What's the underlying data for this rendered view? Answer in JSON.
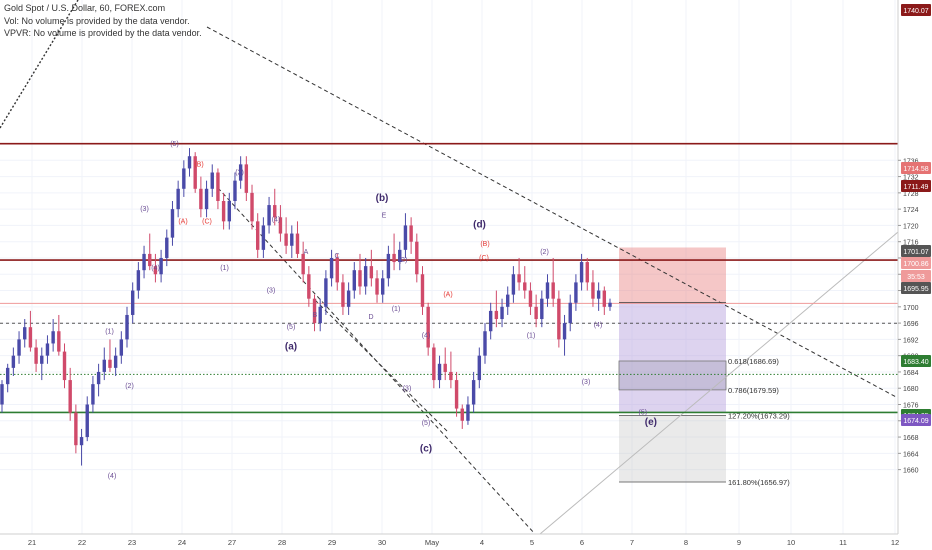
{
  "header": {
    "symbol": "Gold Spot / U.S. Dollar, 60, FOREX.com",
    "vol_note": "Vol: No volume is provided by the data vendor.",
    "vpvr_note": "VPVR: No volume is provided by the data vendor."
  },
  "chart_data": {
    "type": "candlestick",
    "y_ticks": [
      1660,
      1664,
      1668,
      1672,
      1676,
      1680,
      1684,
      1688,
      1692,
      1696,
      1700,
      1704,
      1708,
      1712,
      1716,
      1720,
      1724,
      1728,
      1732,
      1736
    ],
    "x_ticks": [
      "21",
      "22",
      "23",
      "24",
      "27",
      "28",
      "29",
      "30",
      "May",
      "4",
      "5",
      "6",
      "7",
      "8",
      "9",
      "10",
      "11",
      "12"
    ],
    "price_badges": [
      {
        "value": "1740.07",
        "color": "#8b1a1a"
      },
      {
        "value": "1714.58",
        "color": "#e57373"
      },
      {
        "value": "1711.49",
        "color": "#8b1a1a"
      },
      {
        "value": "1701.07",
        "color": "#555555"
      },
      {
        "value": "1700.86",
        "color": "#ef9a9a"
      },
      {
        "value": "35:53",
        "color": "#ef9a9a"
      },
      {
        "value": "1695.95",
        "color": "#555555"
      },
      {
        "value": "1683.40",
        "color": "#2e7d32"
      },
      {
        "value": "1674.05",
        "color": "#2e7d32"
      },
      {
        "value": "1674.09",
        "color": "#7e57c2"
      }
    ],
    "horizontal_levels": [
      {
        "price": 1740.07,
        "color": "#8b1a1a",
        "style": "solid"
      },
      {
        "price": 1711.49,
        "color": "#8b1a1a",
        "style": "solid"
      },
      {
        "price": 1700.86,
        "color": "#ef9a9a",
        "style": "solid"
      },
      {
        "price": 1695.95,
        "color": "#555555",
        "style": "dashed"
      },
      {
        "price": 1683.4,
        "color": "#2e7d32",
        "style": "dotted"
      },
      {
        "price": 1674.05,
        "color": "#2e7d32",
        "style": "solid"
      }
    ],
    "fib_labels": [
      {
        "text": "0.618(1686.69)",
        "price": 1686.69
      },
      {
        "text": "0.786(1679.59)",
        "price": 1679.59
      },
      {
        "text": "127.20%(1673.29)",
        "price": 1673.29
      },
      {
        "text": "161.80%(1656.97)",
        "price": 1656.97
      }
    ],
    "wave_labels": [
      {
        "text": "(5)",
        "time": 2.85,
        "price": 1739.5,
        "color": "#6a4c93",
        "size": 7
      },
      {
        "text": "(B)",
        "time": 3.34,
        "price": 1734.5,
        "color": "#e53935",
        "size": 7
      },
      {
        "text": "(A)",
        "time": 3.02,
        "price": 1720.5,
        "color": "#e53935",
        "size": 7
      },
      {
        "text": "(C)",
        "time": 3.5,
        "price": 1720.5,
        "color": "#e53935",
        "size": 7
      },
      {
        "text": "(3)",
        "time": 2.25,
        "price": 1723.5,
        "color": "#6a4c93",
        "size": 7
      },
      {
        "text": "(4)",
        "time": 2.47,
        "price": 1709,
        "color": "#6a4c93",
        "size": 7
      },
      {
        "text": "(1)",
        "time": 1.55,
        "price": 1693.5,
        "color": "#6a4c93",
        "size": 7
      },
      {
        "text": "(2)",
        "time": 1.95,
        "price": 1680,
        "color": "#6a4c93",
        "size": 7
      },
      {
        "text": "(4)",
        "time": 1.6,
        "price": 1658,
        "color": "#6a4c93",
        "size": 7
      },
      {
        "text": "(2)",
        "time": 4.15,
        "price": 1732.5,
        "color": "#6a4c93",
        "size": 7
      },
      {
        "text": "(4)",
        "time": 4.88,
        "price": 1721,
        "color": "#6a4c93",
        "size": 7
      },
      {
        "text": "(1)",
        "time": 3.85,
        "price": 1709,
        "color": "#6a4c93",
        "size": 7
      },
      {
        "text": "(3)",
        "time": 4.78,
        "price": 1703.5,
        "color": "#6a4c93",
        "size": 7
      },
      {
        "text": "(5)",
        "time": 5.18,
        "price": 1694.5,
        "color": "#6a4c93",
        "size": 7
      },
      {
        "text": "A",
        "time": 5.48,
        "price": 1713,
        "color": "#6a4c93",
        "size": 7
      },
      {
        "text": "B",
        "time": 5.66,
        "price": 1697.5,
        "color": "#6a4c93",
        "size": 7
      },
      {
        "text": "C",
        "time": 6.1,
        "price": 1712,
        "color": "#6a4c93",
        "size": 7
      },
      {
        "text": "D",
        "time": 6.78,
        "price": 1697,
        "color": "#6a4c93",
        "size": 7
      },
      {
        "text": "E",
        "time": 7.04,
        "price": 1722,
        "color": "#6a4c93",
        "size": 7
      },
      {
        "text": "(a)",
        "time": 5.18,
        "price": 1689.5,
        "color": "#3f2a6b",
        "size": 10
      },
      {
        "text": "(b)",
        "time": 7.0,
        "price": 1726,
        "color": "#3f2a6b",
        "size": 10
      },
      {
        "text": "(2)",
        "time": 7.42,
        "price": 1711,
        "color": "#6a4c93",
        "size": 7
      },
      {
        "text": "(1)",
        "time": 7.28,
        "price": 1699,
        "color": "#6a4c93",
        "size": 7
      },
      {
        "text": "(4)",
        "time": 7.88,
        "price": 1692.5,
        "color": "#6a4c93",
        "size": 7
      },
      {
        "text": "(3)",
        "time": 7.5,
        "price": 1679.5,
        "color": "#6a4c93",
        "size": 7
      },
      {
        "text": "(5)",
        "time": 7.88,
        "price": 1671,
        "color": "#6a4c93",
        "size": 7
      },
      {
        "text": "(c)",
        "time": 7.88,
        "price": 1664.5,
        "color": "#3f2a6b",
        "size": 10
      },
      {
        "text": "(d)",
        "time": 8.95,
        "price": 1719.5,
        "color": "#3f2a6b",
        "size": 10
      },
      {
        "text": "(A)",
        "time": 8.32,
        "price": 1702.5,
        "color": "#e53935",
        "size": 7
      },
      {
        "text": "(B)",
        "time": 9.06,
        "price": 1715,
        "color": "#e53935",
        "size": 7
      },
      {
        "text": "(C)",
        "time": 9.04,
        "price": 1711.5,
        "color": "#e53935",
        "size": 7
      },
      {
        "text": "(2)",
        "time": 10.25,
        "price": 1713,
        "color": "#6a4c93",
        "size": 7
      },
      {
        "text": "(1)",
        "time": 9.98,
        "price": 1692.5,
        "color": "#6a4c93",
        "size": 7
      },
      {
        "text": "(4)",
        "time": 11.32,
        "price": 1695,
        "color": "#6a4c93",
        "size": 7
      },
      {
        "text": "(3)",
        "time": 11.08,
        "price": 1681,
        "color": "#6a4c93",
        "size": 7
      },
      {
        "text": "(5)",
        "time": 12.2,
        "price": 1673.5,
        "color": "#6a4c93",
        "size": 7
      },
      {
        "text": "(e)",
        "time": 12.35,
        "price": 1671,
        "color": "#3f2a6b",
        "size": 10
      }
    ],
    "ohlc": [
      [
        1676.0,
        1682.0,
        1674.0,
        1681.0
      ],
      [
        1681.0,
        1686.0,
        1679.0,
        1685.0
      ],
      [
        1685.0,
        1690.0,
        1683.0,
        1688.0
      ],
      [
        1688.0,
        1694.0,
        1686.0,
        1692.0
      ],
      [
        1692.0,
        1697.0,
        1690.0,
        1695.0
      ],
      [
        1695.0,
        1699.0,
        1689.0,
        1690.0
      ],
      [
        1690.0,
        1692.0,
        1684.0,
        1686.0
      ],
      [
        1686.0,
        1690.0,
        1682.0,
        1688.0
      ],
      [
        1688.0,
        1693.0,
        1686.0,
        1691.0
      ],
      [
        1691.0,
        1697.0,
        1689.0,
        1694.0
      ],
      [
        1694.0,
        1698.0,
        1688.0,
        1689.0
      ],
      [
        1689.0,
        1691.0,
        1680.0,
        1682.0
      ],
      [
        1682.0,
        1685.0,
        1672.0,
        1674.0
      ],
      [
        1674.0,
        1676.0,
        1664.0,
        1666.0
      ],
      [
        1666.0,
        1670.0,
        1661.0,
        1668.0
      ],
      [
        1668.0,
        1678.0,
        1667.0,
        1676.0
      ],
      [
        1676.0,
        1683.0,
        1674.0,
        1681.0
      ],
      [
        1681.0,
        1686.0,
        1678.0,
        1684.0
      ],
      [
        1684.0,
        1690.0,
        1682.0,
        1687.0
      ],
      [
        1687.0,
        1692.0,
        1684.0,
        1685.0
      ],
      [
        1685.0,
        1690.0,
        1683.0,
        1688.0
      ],
      [
        1688.0,
        1694.0,
        1686.0,
        1692.0
      ],
      [
        1692.0,
        1700.0,
        1690.0,
        1698.0
      ],
      [
        1698.0,
        1706.0,
        1696.0,
        1704.0
      ],
      [
        1704.0,
        1711.0,
        1702.0,
        1709.0
      ],
      [
        1709.0,
        1715.0,
        1707.0,
        1713.0
      ],
      [
        1713.0,
        1718.0,
        1709.0,
        1710.0
      ],
      [
        1710.0,
        1713.0,
        1706.0,
        1708.0
      ],
      [
        1708.0,
        1714.0,
        1706.0,
        1712.0
      ],
      [
        1712.0,
        1719.0,
        1710.0,
        1717.0
      ],
      [
        1717.0,
        1726.0,
        1715.0,
        1724.0
      ],
      [
        1724.0,
        1731.0,
        1722.0,
        1729.0
      ],
      [
        1729.0,
        1736.0,
        1727.0,
        1734.0
      ],
      [
        1734.0,
        1739.0,
        1732.0,
        1737.0
      ],
      [
        1737.0,
        1738.0,
        1728.0,
        1729.0
      ],
      [
        1729.0,
        1732.0,
        1722.0,
        1724.0
      ],
      [
        1724.0,
        1731.0,
        1722.0,
        1729.0
      ],
      [
        1729.0,
        1735.0,
        1727.0,
        1733.0
      ],
      [
        1733.0,
        1734.0,
        1724.0,
        1726.0
      ],
      [
        1726.0,
        1728.0,
        1719.0,
        1721.0
      ],
      [
        1721.0,
        1728.0,
        1719.0,
        1726.0
      ],
      [
        1726.0,
        1733.0,
        1724.0,
        1731.0
      ],
      [
        1731.0,
        1737.0,
        1729.0,
        1735.0
      ],
      [
        1735.0,
        1737.0,
        1726.0,
        1728.0
      ],
      [
        1728.0,
        1730.0,
        1719.0,
        1721.0
      ],
      [
        1721.0,
        1723.0,
        1712.0,
        1714.0
      ],
      [
        1714.0,
        1722.0,
        1712.0,
        1720.0
      ],
      [
        1720.0,
        1727.0,
        1718.0,
        1725.0
      ],
      [
        1725.0,
        1729.0,
        1720.0,
        1722.0
      ],
      [
        1722.0,
        1725.0,
        1716.0,
        1718.0
      ],
      [
        1718.0,
        1722.0,
        1713.0,
        1715.0
      ],
      [
        1715.0,
        1720.0,
        1712.0,
        1718.0
      ],
      [
        1718.0,
        1721.0,
        1712.0,
        1713.0
      ],
      [
        1713.0,
        1716.0,
        1706.0,
        1708.0
      ],
      [
        1708.0,
        1710.0,
        1700.0,
        1702.0
      ],
      [
        1702.0,
        1703.0,
        1694.0,
        1696.0
      ],
      [
        1696.0,
        1702.0,
        1694.0,
        1700.0
      ],
      [
        1700.0,
        1709.0,
        1698.0,
        1707.0
      ],
      [
        1707.0,
        1714.0,
        1705.0,
        1712.0
      ],
      [
        1712.0,
        1713.0,
        1704.0,
        1706.0
      ],
      [
        1706.0,
        1708.0,
        1698.0,
        1700.0
      ],
      [
        1700.0,
        1706.0,
        1698.0,
        1704.0
      ],
      [
        1704.0,
        1711.0,
        1702.0,
        1709.0
      ],
      [
        1709.0,
        1713.0,
        1703.0,
        1705.0
      ],
      [
        1705.0,
        1712.0,
        1703.0,
        1710.0
      ],
      [
        1710.0,
        1714.0,
        1705.0,
        1707.0
      ],
      [
        1707.0,
        1709.0,
        1701.0,
        1703.0
      ],
      [
        1703.0,
        1709.0,
        1701.0,
        1707.0
      ],
      [
        1707.0,
        1715.0,
        1705.0,
        1713.0
      ],
      [
        1713.0,
        1718.0,
        1709.0,
        1711.0
      ],
      [
        1711.0,
        1716.0,
        1709.0,
        1714.0
      ],
      [
        1714.0,
        1723.0,
        1712.0,
        1720.0
      ],
      [
        1720.0,
        1722.0,
        1713.0,
        1716.0
      ],
      [
        1716.0,
        1718.0,
        1706.0,
        1708.0
      ],
      [
        1708.0,
        1710.0,
        1698.0,
        1700.0
      ],
      [
        1700.0,
        1701.0,
        1688.0,
        1690.0
      ],
      [
        1690.0,
        1691.0,
        1680.0,
        1682.0
      ],
      [
        1682.0,
        1688.0,
        1680.0,
        1686.0
      ],
      [
        1686.0,
        1690.0,
        1682.0,
        1684.0
      ],
      [
        1684.0,
        1689.0,
        1680.0,
        1682.0
      ],
      [
        1682.0,
        1684.0,
        1673.0,
        1675.0
      ],
      [
        1675.0,
        1676.0,
        1670.0,
        1672.0
      ],
      [
        1672.0,
        1678.0,
        1671.0,
        1676.0
      ],
      [
        1676.0,
        1684.0,
        1674.0,
        1682.0
      ],
      [
        1682.0,
        1690.0,
        1680.0,
        1688.0
      ],
      [
        1688.0,
        1696.0,
        1686.0,
        1694.0
      ],
      [
        1694.0,
        1701.0,
        1692.0,
        1699.0
      ],
      [
        1699.0,
        1704.0,
        1695.0,
        1697.0
      ],
      [
        1697.0,
        1702.0,
        1695.0,
        1700.0
      ],
      [
        1700.0,
        1705.0,
        1698.0,
        1703.0
      ],
      [
        1703.0,
        1710.0,
        1701.0,
        1708.0
      ],
      [
        1708.0,
        1712.0,
        1704.0,
        1706.0
      ],
      [
        1706.0,
        1710.0,
        1702.0,
        1704.0
      ],
      [
        1704.0,
        1706.0,
        1698.0,
        1700.0
      ],
      [
        1700.0,
        1703.0,
        1695.0,
        1697.0
      ],
      [
        1697.0,
        1704.0,
        1695.0,
        1702.0
      ],
      [
        1702.0,
        1708.0,
        1700.0,
        1706.0
      ],
      [
        1706.0,
        1712.0,
        1700.0,
        1702.0
      ],
      [
        1702.0,
        1704.0,
        1690.0,
        1692.0
      ],
      [
        1692.0,
        1698.0,
        1688.0,
        1696.0
      ],
      [
        1696.0,
        1703.0,
        1694.0,
        1701.0
      ],
      [
        1701.0,
        1708.0,
        1699.0,
        1706.0
      ],
      [
        1706.0,
        1713.0,
        1704.0,
        1711.0
      ],
      [
        1711.0,
        1712.0,
        1704.0,
        1706.0
      ],
      [
        1706.0,
        1709.0,
        1700.0,
        1702.0
      ],
      [
        1702.0,
        1706.0,
        1699.0,
        1704.0
      ],
      [
        1704.0,
        1705.0,
        1698.0,
        1700.0
      ],
      [
        1700.0,
        1702.0,
        1699.0,
        1701.0
      ]
    ]
  }
}
